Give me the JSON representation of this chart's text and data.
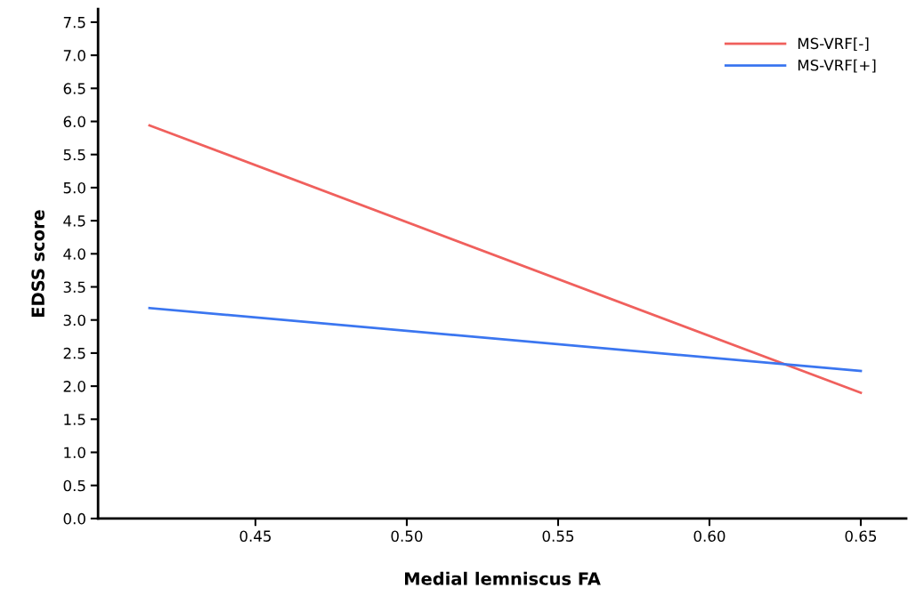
{
  "chart_data": {
    "type": "line",
    "xlabel": "Medial lemniscus FA",
    "ylabel": "EDSS score",
    "series": [
      {
        "name": "MS-VRF[-]",
        "color": "#f0605d",
        "values": [
          5.94,
          1.9
        ]
      },
      {
        "name": "MS-VRF[+]",
        "color": "#3b76f0",
        "values": [
          3.18,
          2.23
        ]
      }
    ],
    "x": [
      0.415,
      0.65
    ],
    "xlim": [
      0.398,
      0.665
    ],
    "xticks": [
      {
        "value": 0.45,
        "label": "0.45"
      },
      {
        "value": 0.5,
        "label": "0.50"
      },
      {
        "value": 0.55,
        "label": "0.55"
      },
      {
        "value": 0.6,
        "label": "0.60"
      },
      {
        "value": 0.65,
        "label": "0.65"
      }
    ],
    "ylim": [
      0,
      7.7
    ],
    "yticks": [
      {
        "value": 0,
        "label": "0.0"
      },
      {
        "value": 0.5,
        "label": "0.5"
      },
      {
        "value": 1,
        "label": "1.0"
      },
      {
        "value": 1.5,
        "label": "1.5"
      },
      {
        "value": 2,
        "label": "2.0"
      },
      {
        "value": 2.5,
        "label": "2.5"
      },
      {
        "value": 3,
        "label": "3.0"
      },
      {
        "value": 3.5,
        "label": "3.5"
      },
      {
        "value": 4,
        "label": "4.0"
      },
      {
        "value": 4.5,
        "label": "4.5"
      },
      {
        "value": 5,
        "label": "5.0"
      },
      {
        "value": 5.5,
        "label": "5.5"
      },
      {
        "value": 6,
        "label": "6.0"
      },
      {
        "value": 6.5,
        "label": "6.5"
      },
      {
        "value": 7,
        "label": "7.0"
      },
      {
        "value": 7.5,
        "label": "7.5"
      }
    ],
    "grid": false,
    "legend": "top right",
    "line_style": "solid"
  }
}
